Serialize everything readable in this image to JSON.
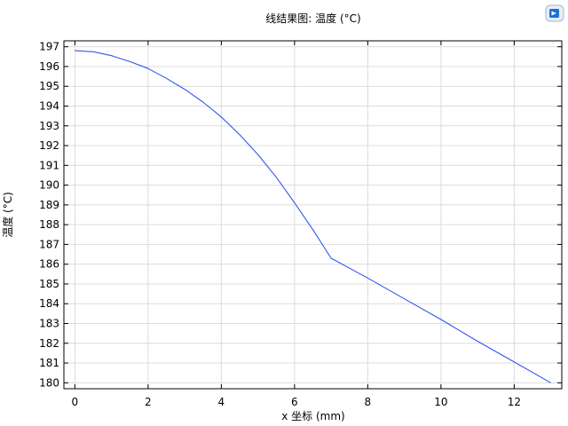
{
  "chart_data": {
    "type": "line",
    "title": "线结果图: 温度 (°C)",
    "xlabel": "x 坐标 (mm)",
    "ylabel": "温度 (°C)",
    "xlim": [
      -0.3,
      13.3
    ],
    "ylim": [
      179.7,
      197.3
    ],
    "x_ticks": [
      0,
      2,
      4,
      6,
      8,
      10,
      12
    ],
    "y_ticks": [
      180,
      181,
      182,
      183,
      184,
      185,
      186,
      187,
      188,
      189,
      190,
      191,
      192,
      193,
      194,
      195,
      196,
      197
    ],
    "grid": true,
    "series": [
      {
        "color": "#3355ee",
        "x": [
          0,
          0.5,
          1,
          1.5,
          2,
          2.5,
          3,
          3.5,
          4,
          4.5,
          5,
          5.5,
          6,
          6.5,
          7,
          8,
          9,
          10,
          11,
          12,
          13
        ],
        "y": [
          196.8,
          196.75,
          196.55,
          196.25,
          195.9,
          195.4,
          194.85,
          194.2,
          193.45,
          192.55,
          191.55,
          190.4,
          189.1,
          187.75,
          186.3,
          185.3,
          184.25,
          183.2,
          182.1,
          181.05,
          180.0
        ]
      }
    ]
  },
  "logo": {
    "name": "comsol-logo"
  }
}
